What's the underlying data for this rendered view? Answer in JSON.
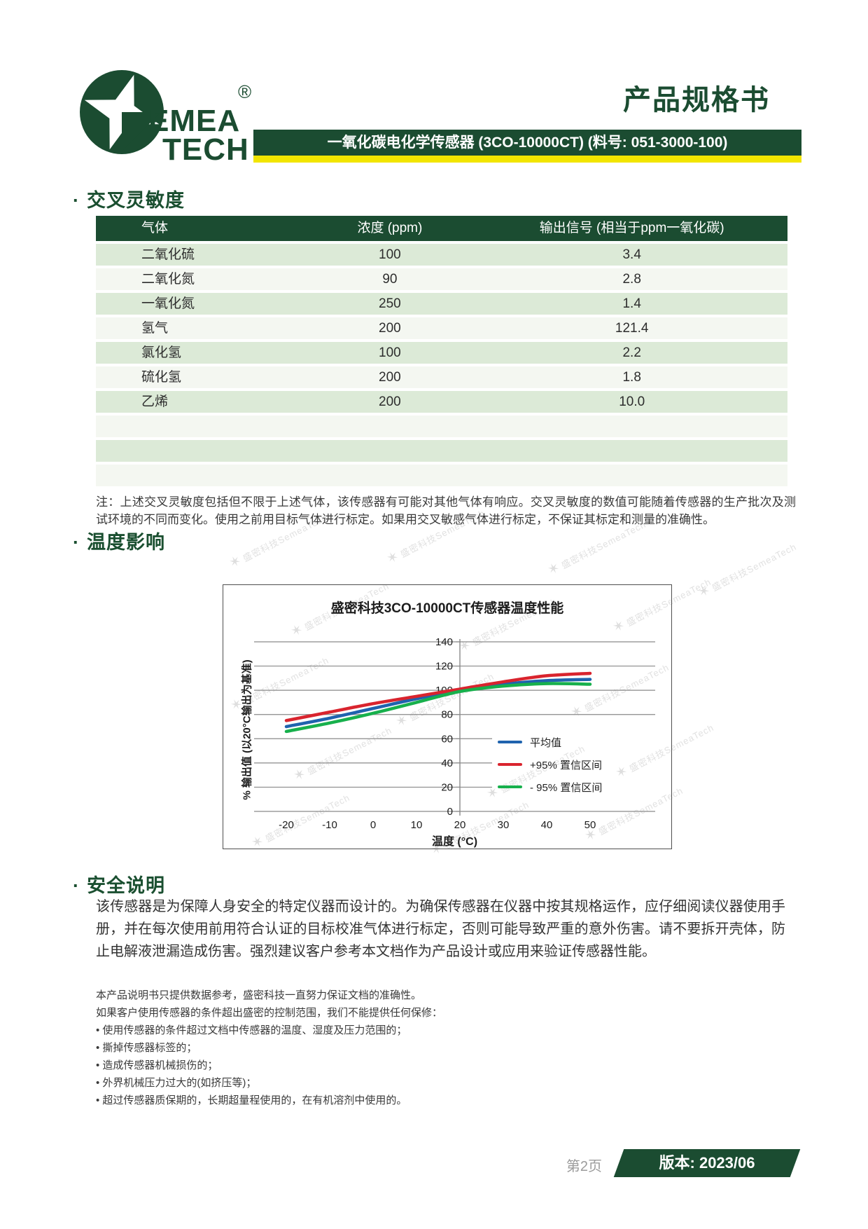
{
  "colors": {
    "dark_green": "#1b4c31",
    "yellow": "#f2e500",
    "row_green": "#dcead7",
    "row_alt": "#f4f7f1",
    "avg_blue": "#1f63ae",
    "conf_red": "#d9242e",
    "conf_green": "#17b04c"
  },
  "header": {
    "logo_text_top": "EMEA",
    "logo_text_bottom": "TECH",
    "logo_reg": "®",
    "doc_title": "产品规格书",
    "product_bar": "一氧化碳电化学传感器 (3CO-10000CT) (料号: 051-3000-100)"
  },
  "sections": {
    "cross_sensitivity": {
      "bullet": "·",
      "title": "交叉灵敏度",
      "table": {
        "headers": [
          "气体",
          "浓度 (ppm)",
          "输出信号 (相当于ppm一氧化碳)"
        ],
        "rows": [
          [
            "二氧化硫",
            "100",
            "3.4"
          ],
          [
            "二氧化氮",
            "90",
            "2.8"
          ],
          [
            "一氧化氮",
            "250",
            "1.4"
          ],
          [
            "氢气",
            "200",
            "121.4"
          ],
          [
            "氯化氢",
            "100",
            "2.2"
          ],
          [
            "硫化氢",
            "200",
            "1.8"
          ],
          [
            "乙烯",
            "200",
            "10.0"
          ],
          [
            "",
            "",
            ""
          ],
          [
            "",
            "",
            ""
          ],
          [
            "",
            "",
            ""
          ]
        ]
      },
      "note": "注：上述交叉灵敏度包括但不限于上述气体，该传感器有可能对其他气体有响应。交叉灵敏度的数值可能随着传感器的生产批次及测试环境的不同而变化。使用之前用目标气体进行标定。如果用交叉敏感气体进行标定，不保证其标定和测量的准确性。"
    },
    "temperature": {
      "bullet": "·",
      "title": "温度影响"
    },
    "safety": {
      "bullet": "·",
      "title": "安全说明",
      "body": "该传感器是为保障人身安全的特定仪器而设计的。为确保传感器在仪器中按其规格运作，应仔细阅读仪器使用手册，并在每次使用前用符合认证的目标校准气体进行标定，否则可能导致严重的意外伤害。请不要拆开壳体，防止电解液泄漏造成伤害。强烈建议客户参考本文档作为产品设计或应用来验证传感器性能。"
    }
  },
  "chart_data": {
    "type": "line",
    "title": "盛密科技3CO-10000CT传感器温度性能",
    "xlabel": "温度 (°C)",
    "ylabel": "% 输出值 (以20°C输出为基准)",
    "x": [
      -20,
      -10,
      0,
      10,
      20,
      30,
      40,
      50
    ],
    "xlim": [
      -27,
      60
    ],
    "ylim": [
      0,
      140
    ],
    "y_ticks": [
      0,
      20,
      40,
      60,
      80,
      100,
      120,
      140
    ],
    "grid": true,
    "legend_position": "right-middle",
    "series": [
      {
        "name": "平均值",
        "color": "#1f63ae",
        "values": [
          70,
          77,
          85,
          93,
          100,
          105,
          108,
          109
        ]
      },
      {
        "name": "+95% 置信区间",
        "color": "#d9242e",
        "values": [
          75,
          82,
          89,
          95,
          101,
          107,
          112,
          114
        ]
      },
      {
        "name": "- 95% 置信区间",
        "color": "#17b04c",
        "values": [
          66,
          73,
          81,
          90,
          99,
          103.5,
          105.5,
          105
        ]
      }
    ]
  },
  "watermark": {
    "star": "✶",
    "text": "盛密科技SemeaTech"
  },
  "disclaimer": {
    "lines": [
      "本产品说明书只提供数据参考，盛密科技一直努力保证文档的准确性。",
      "如果客户使用传感器的条件超出盛密的控制范围，我们不能提供任何保修：",
      "• 使用传感器的条件超过文档中传感器的温度、湿度及压力范围的；",
      "• 撕掉传感器标签的；",
      "• 造成传感器机械损伤的；",
      "• 外界机械压力过大的(如挤压等)；",
      "• 超过传感器质保期的，长期超量程使用的，在有机溶剂中使用的。"
    ]
  },
  "footer": {
    "page": "第2页",
    "version": "版本: 2023/06"
  }
}
